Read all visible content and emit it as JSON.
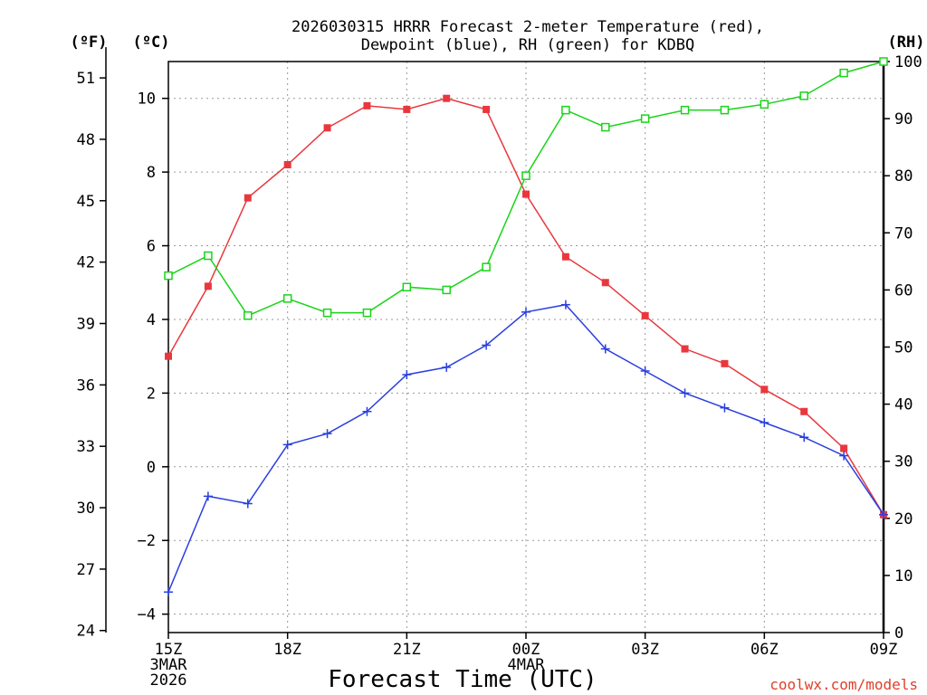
{
  "chart_data": {
    "type": "line",
    "title_line1": "2026030315 HRRR Forecast 2-meter Temperature (red),",
    "title_line2": "Dewpoint (blue), RH (green) for KDBQ",
    "xlabel": "Forecast Time (UTC)",
    "credit": "coolwx.com/models",
    "units": {
      "fahrenheit": "(ºF)",
      "celsius": "(ºC)",
      "rh": "(RH)"
    },
    "x_ticks": [
      {
        "hour": 0,
        "lines": [
          "15Z",
          "3MAR",
          "2026"
        ]
      },
      {
        "hour": 3,
        "lines": [
          "18Z"
        ]
      },
      {
        "hour": 6,
        "lines": [
          "21Z"
        ]
      },
      {
        "hour": 9,
        "lines": [
          "00Z",
          "4MAR"
        ]
      },
      {
        "hour": 12,
        "lines": [
          "03Z"
        ]
      },
      {
        "hour": 15,
        "lines": [
          "06Z"
        ]
      },
      {
        "hour": 18,
        "lines": [
          "09Z"
        ]
      }
    ],
    "xlim": [
      0,
      18
    ],
    "ylim_celsius": [
      -4.5,
      11.0
    ],
    "ylim_rh": [
      0,
      100
    ],
    "celsius_ticks": [
      -4,
      -2,
      0,
      2,
      4,
      6,
      8,
      10
    ],
    "fahrenheit_ticks": [
      24,
      27,
      30,
      33,
      36,
      39,
      42,
      45,
      48,
      51
    ],
    "rh_ticks": [
      0,
      10,
      20,
      30,
      40,
      50,
      60,
      70,
      80,
      90,
      100
    ],
    "series": [
      {
        "name": "Temperature",
        "axis": "celsius",
        "color": "#e8383d",
        "marker": "filled-square",
        "x": [
          0,
          1,
          2,
          3,
          4,
          5,
          6,
          7,
          8,
          9,
          10,
          11,
          12,
          13,
          14,
          15,
          16,
          17,
          18
        ],
        "values": [
          3.0,
          4.9,
          7.3,
          8.2,
          9.2,
          9.8,
          9.7,
          10.0,
          9.7,
          7.4,
          5.7,
          5.0,
          4.1,
          3.2,
          2.8,
          2.1,
          1.5,
          0.5,
          -1.3
        ]
      },
      {
        "name": "Dewpoint",
        "axis": "celsius",
        "color": "#2a3fe0",
        "marker": "plus",
        "x": [
          0,
          1,
          2,
          3,
          4,
          5,
          6,
          7,
          8,
          9,
          10,
          11,
          12,
          13,
          14,
          15,
          16,
          17,
          18
        ],
        "values": [
          -3.4,
          -0.8,
          -1.0,
          0.6,
          0.9,
          1.5,
          2.5,
          2.7,
          3.3,
          4.2,
          4.4,
          3.2,
          2.6,
          2.0,
          1.6,
          1.2,
          0.8,
          0.3,
          -1.3
        ]
      },
      {
        "name": "RH",
        "axis": "rh",
        "color": "#1ad41a",
        "marker": "open-square",
        "x": [
          0,
          1,
          2,
          3,
          4,
          5,
          6,
          7,
          8,
          9,
          10,
          11,
          12,
          13,
          14,
          15,
          16,
          17,
          18
        ],
        "values": [
          62.5,
          66,
          55.5,
          58.5,
          56,
          56,
          60.5,
          60,
          64,
          80,
          91.5,
          88.5,
          90,
          91.5,
          91.5,
          92.5,
          94,
          98,
          100
        ]
      }
    ]
  }
}
